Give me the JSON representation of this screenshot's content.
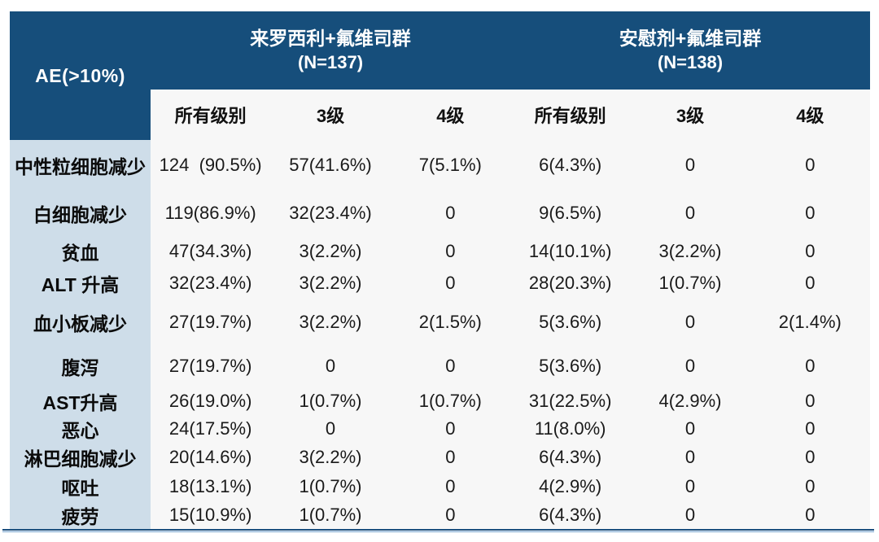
{
  "table": {
    "corner_header": "AE(>10%)",
    "groups": [
      {
        "title": "来罗西利+氟维司群",
        "n_label": "(N=137)",
        "subcolumns": [
          "所有级别",
          "3级",
          "4级"
        ]
      },
      {
        "title": "安慰剂+氟维司群",
        "n_label": "(N=138)",
        "subcolumns": [
          "所有级别",
          "3级",
          "4级"
        ]
      }
    ],
    "rows": [
      {
        "label": "中性粒细胞减少",
        "values": [
          "124  (90.5%)",
          "57(41.6%)",
          "7(5.1%)",
          "6(4.3%)",
          "0",
          "0"
        ]
      },
      {
        "label": "白细胞减少",
        "values": [
          "119(86.9%)",
          "32(23.4%)",
          "0",
          "9(6.5%)",
          "0",
          "0"
        ]
      },
      {
        "label": "贫血",
        "values": [
          "47(34.3%)",
          "3(2.2%)",
          "0",
          "14(10.1%)",
          "3(2.2%)",
          "0"
        ]
      },
      {
        "label": "ALT 升高",
        "values": [
          "32(23.4%)",
          "3(2.2%)",
          "0",
          "28(20.3%)",
          "1(0.7%)",
          "0"
        ]
      },
      {
        "label": "血小板减少",
        "values": [
          "27(19.7%)",
          "3(2.2%)",
          "2(1.5%)",
          "5(3.6%)",
          "0",
          "2(1.4%)"
        ]
      },
      {
        "label": "腹泻",
        "values": [
          "27(19.7%)",
          "0",
          "0",
          "5(3.6%)",
          "0",
          "0"
        ]
      },
      {
        "label": "AST升高",
        "values": [
          "26(19.0%)",
          "1(0.7%)",
          "1(0.7%)",
          "31(22.5%)",
          "4(2.9%)",
          "0"
        ]
      },
      {
        "label": "恶心",
        "values": [
          "24(17.5%)",
          "0",
          "0",
          "11(8.0%)",
          "0",
          "0"
        ]
      },
      {
        "label": "淋巴细胞减少",
        "values": [
          "20(14.6%)",
          "3(2.2%)",
          "0",
          "6(4.3%)",
          "0",
          "0"
        ]
      },
      {
        "label": "呕吐",
        "values": [
          "18(13.1%)",
          "1(0.7%)",
          "0",
          "4(2.9%)",
          "0",
          "0"
        ]
      },
      {
        "label": "疲劳",
        "values": [
          "15(10.9%)",
          "1(0.7%)",
          "0",
          "6(4.3%)",
          "0",
          "0"
        ]
      }
    ],
    "colors": {
      "header_bg": "#164E7B",
      "header_text": "#FFFFFF",
      "label_column_bg": "#CEDDE9",
      "body_cell_bg": "#F7F7F7",
      "body_text": "#1A1A1A",
      "bottom_border": "#1B4F7E"
    }
  },
  "chart_data": {
    "type": "table",
    "title": "AE(>10%)",
    "column_groups": [
      "来罗西利+氟维司群 (N=137)",
      "安慰剂+氟维司群 (N=138)"
    ],
    "columns": [
      "AE(>10%)",
      "所有级别",
      "3级",
      "4级",
      "所有级别",
      "3级",
      "4级"
    ],
    "rows": [
      [
        "中性粒细胞减少",
        "124 (90.5%)",
        "57(41.6%)",
        "7(5.1%)",
        "6(4.3%)",
        "0",
        "0"
      ],
      [
        "白细胞减少",
        "119(86.9%)",
        "32(23.4%)",
        "0",
        "9(6.5%)",
        "0",
        "0"
      ],
      [
        "贫血",
        "47(34.3%)",
        "3(2.2%)",
        "0",
        "14(10.1%)",
        "3(2.2%)",
        "0"
      ],
      [
        "ALT 升高",
        "32(23.4%)",
        "3(2.2%)",
        "0",
        "28(20.3%)",
        "1(0.7%)",
        "0"
      ],
      [
        "血小板减少",
        "27(19.7%)",
        "3(2.2%)",
        "2(1.5%)",
        "5(3.6%)",
        "0",
        "2(1.4%)"
      ],
      [
        "腹泻",
        "27(19.7%)",
        "0",
        "0",
        "5(3.6%)",
        "0",
        "0"
      ],
      [
        "AST升高",
        "26(19.0%)",
        "1(0.7%)",
        "1(0.7%)",
        "31(22.5%)",
        "4(2.9%)",
        "0"
      ],
      [
        "恶心",
        "24(17.5%)",
        "0",
        "0",
        "11(8.0%)",
        "0",
        "0"
      ],
      [
        "淋巴细胞减少",
        "20(14.6%)",
        "3(2.2%)",
        "0",
        "6(4.3%)",
        "0",
        "0"
      ],
      [
        "呕吐",
        "18(13.1%)",
        "1(0.7%)",
        "0",
        "4(2.9%)",
        "0",
        "0"
      ],
      [
        "疲劳",
        "15(10.9%)",
        "1(0.7%)",
        "0",
        "6(4.3%)",
        "0",
        "0"
      ]
    ],
    "layout_hints": {
      "grid": "off",
      "header_rows": 2,
      "label_column_highlight": true,
      "bottom_rule": true
    }
  }
}
